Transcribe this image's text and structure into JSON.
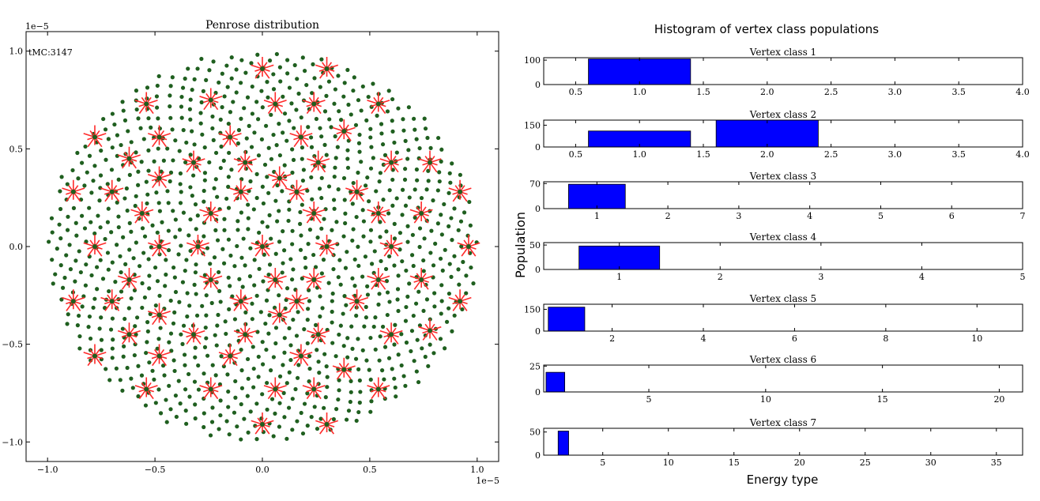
{
  "chart_data": [
    {
      "type": "scatter",
      "title": "Penrose distribution",
      "annotation": "tMC:3147",
      "xlim": [
        -1.1,
        1.1
      ],
      "ylim": [
        -1.1,
        1.1
      ],
      "x_scale_label": "1e−5",
      "y_scale_label": "1e−5",
      "xticks": [
        -1.0,
        -0.5,
        0.0,
        0.5,
        1.0
      ],
      "xtick_labels": [
        "−1.0",
        "−0.5",
        "0.0",
        "0.5",
        "1.0"
      ],
      "yticks": [
        -1.0,
        -0.5,
        0.0,
        0.5,
        1.0
      ],
      "ytick_labels": [
        "−1.0",
        "−0.5",
        "0.0",
        "0.5",
        "1.0"
      ],
      "disk_radius": 1.0,
      "colors": {
        "vertex": "#1f5f1f",
        "star": "#ff2a2a"
      },
      "stars": [
        [
          0.0,
          0.91
        ],
        [
          0.3,
          0.91
        ],
        [
          -0.24,
          0.75
        ],
        [
          0.06,
          0.73
        ],
        [
          0.24,
          0.73
        ],
        [
          0.54,
          0.73
        ],
        [
          -0.54,
          0.73
        ],
        [
          0.38,
          0.59
        ],
        [
          -0.78,
          0.56
        ],
        [
          -0.48,
          0.56
        ],
        [
          -0.15,
          0.56
        ],
        [
          0.18,
          0.56
        ],
        [
          0.78,
          0.43
        ],
        [
          -0.62,
          0.45
        ],
        [
          -0.32,
          0.43
        ],
        [
          -0.08,
          0.43
        ],
        [
          0.08,
          0.35
        ],
        [
          0.26,
          0.43
        ],
        [
          0.6,
          0.43
        ],
        [
          -0.48,
          0.35
        ],
        [
          0.92,
          0.28
        ],
        [
          -0.88,
          0.28
        ],
        [
          -0.7,
          0.28
        ],
        [
          -0.1,
          0.28
        ],
        [
          0.16,
          0.28
        ],
        [
          0.44,
          0.28
        ],
        [
          0.74,
          0.17
        ],
        [
          -0.56,
          0.17
        ],
        [
          -0.24,
          0.17
        ],
        [
          0.24,
          0.17
        ],
        [
          0.54,
          0.17
        ],
        [
          -0.78,
          0.0
        ],
        [
          -0.48,
          0.0
        ],
        [
          -0.3,
          0.0
        ],
        [
          0.0,
          0.0
        ],
        [
          0.3,
          0.0
        ],
        [
          0.6,
          0.0
        ],
        [
          0.96,
          0.0
        ],
        [
          -0.62,
          -0.17
        ],
        [
          -0.24,
          -0.17
        ],
        [
          0.06,
          -0.17
        ],
        [
          0.24,
          -0.17
        ],
        [
          0.54,
          -0.17
        ],
        [
          0.74,
          -0.17
        ],
        [
          -0.88,
          -0.28
        ],
        [
          -0.7,
          -0.28
        ],
        [
          -0.1,
          -0.28
        ],
        [
          0.16,
          -0.28
        ],
        [
          0.44,
          -0.28
        ],
        [
          0.92,
          -0.28
        ],
        [
          -0.48,
          -0.35
        ],
        [
          0.08,
          -0.35
        ],
        [
          -0.62,
          -0.45
        ],
        [
          -0.32,
          -0.45
        ],
        [
          -0.08,
          -0.45
        ],
        [
          0.26,
          -0.45
        ],
        [
          0.6,
          -0.45
        ],
        [
          0.78,
          -0.43
        ],
        [
          -0.78,
          -0.56
        ],
        [
          -0.48,
          -0.56
        ],
        [
          -0.15,
          -0.56
        ],
        [
          0.18,
          -0.56
        ],
        [
          0.38,
          -0.63
        ],
        [
          -0.54,
          -0.73
        ],
        [
          -0.24,
          -0.73
        ],
        [
          0.06,
          -0.73
        ],
        [
          0.24,
          -0.73
        ],
        [
          0.54,
          -0.73
        ],
        [
          0.0,
          -0.91
        ],
        [
          0.3,
          -0.91
        ]
      ]
    },
    {
      "type": "bar",
      "title": "Histogram of vertex class populations",
      "xlabel": "Energy type",
      "ylabel": "Population",
      "colors": {
        "bar": "#0000ff"
      },
      "panels": [
        {
          "title": "Vertex class 1",
          "xlim": [
            0.25,
            4.0
          ],
          "xticks": [
            0.5,
            1.0,
            1.5,
            2.0,
            2.5,
            3.0,
            3.5,
            4.0
          ],
          "xtick_labels": [
            "0.5",
            "1.0",
            "1.5",
            "2.0",
            "2.5",
            "3.0",
            "3.5",
            "4.0"
          ],
          "ylim": [
            0,
            110
          ],
          "yticks": [
            0,
            100
          ],
          "ytick_labels": [
            "0",
            "100"
          ],
          "bars": [
            {
              "x": 1.0,
              "width": 0.8,
              "value": 105
            }
          ]
        },
        {
          "title": "Vertex class 2",
          "xlim": [
            0.25,
            4.0
          ],
          "xticks": [
            0.5,
            1.0,
            1.5,
            2.0,
            2.5,
            3.0,
            3.5,
            4.0
          ],
          "xtick_labels": [
            "0.5",
            "1.0",
            "1.5",
            "2.0",
            "2.5",
            "3.0",
            "3.5",
            "4.0"
          ],
          "ylim": [
            0,
            185
          ],
          "yticks": [
            0,
            150
          ],
          "ytick_labels": [
            "0",
            "150"
          ],
          "bars": [
            {
              "x": 1.0,
              "width": 0.8,
              "value": 110
            },
            {
              "x": 2.0,
              "width": 0.8,
              "value": 185
            }
          ]
        },
        {
          "title": "Vertex class 3",
          "xlim": [
            0.25,
            7.0
          ],
          "xticks": [
            1,
            2,
            3,
            4,
            5,
            6,
            7
          ],
          "xtick_labels": [
            "1",
            "2",
            "3",
            "4",
            "5",
            "6",
            "7"
          ],
          "ylim": [
            0,
            75
          ],
          "yticks": [
            0,
            70
          ],
          "ytick_labels": [
            "0",
            "70"
          ],
          "bars": [
            {
              "x": 1.0,
              "width": 0.8,
              "value": 68
            }
          ]
        },
        {
          "title": "Vertex class 4",
          "xlim": [
            0.25,
            5.0
          ],
          "xticks": [
            1,
            2,
            3,
            4,
            5
          ],
          "xtick_labels": [
            "1",
            "2",
            "3",
            "4",
            "5"
          ],
          "ylim": [
            0,
            55
          ],
          "yticks": [
            0,
            50
          ],
          "ytick_labels": [
            "0",
            "50"
          ],
          "bars": [
            {
              "x": 1.0,
              "width": 0.8,
              "value": 48
            }
          ]
        },
        {
          "title": "Vertex class 5",
          "xlim": [
            0.5,
            11.0
          ],
          "xticks": [
            2,
            4,
            6,
            8,
            10
          ],
          "xtick_labels": [
            "2",
            "4",
            "6",
            "8",
            "10"
          ],
          "ylim": [
            0,
            185
          ],
          "yticks": [
            0,
            150
          ],
          "ytick_labels": [
            "0",
            "150"
          ],
          "bars": [
            {
              "x": 1.0,
              "width": 0.8,
              "value": 165
            }
          ]
        },
        {
          "title": "Vertex class 6",
          "xlim": [
            0.5,
            21.0
          ],
          "xticks": [
            5,
            10,
            15,
            20
          ],
          "xtick_labels": [
            "5",
            "10",
            "15",
            "20"
          ],
          "ylim": [
            0,
            26
          ],
          "yticks": [
            0,
            25
          ],
          "ytick_labels": [
            "0",
            "25"
          ],
          "bars": [
            {
              "x": 1.0,
              "width": 0.8,
              "value": 19
            }
          ]
        },
        {
          "title": "Vertex class 7",
          "xlim": [
            0.5,
            37.0
          ],
          "xticks": [
            5,
            10,
            15,
            20,
            25,
            30,
            35
          ],
          "xtick_labels": [
            "5",
            "10",
            "15",
            "20",
            "25",
            "30",
            "35"
          ],
          "ylim": [
            0,
            58
          ],
          "yticks": [
            0,
            50
          ],
          "ytick_labels": [
            "0",
            "50"
          ],
          "bars": [
            {
              "x": 2.0,
              "width": 0.8,
              "value": 52
            }
          ]
        }
      ]
    }
  ]
}
